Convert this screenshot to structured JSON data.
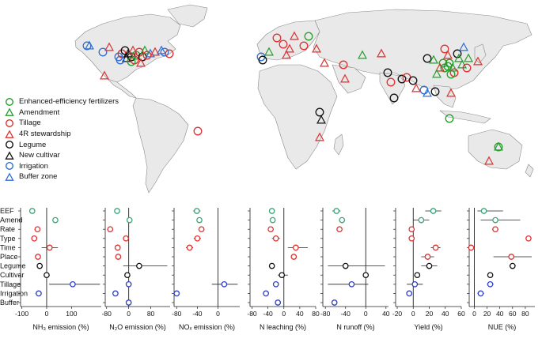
{
  "map": {
    "legend": [
      {
        "label": "Enhanced-efficiency fertilizers",
        "shape": "circle",
        "color": "#22a02a"
      },
      {
        "label": "Amendment",
        "shape": "triangle",
        "color": "#22a02a"
      },
      {
        "label": "Tillage",
        "shape": "circle",
        "color": "#e03030"
      },
      {
        "label": "4R stewardship",
        "shape": "triangle",
        "color": "#e03030"
      },
      {
        "label": "Legume",
        "shape": "circle",
        "color": "#111111"
      },
      {
        "label": "New cultivar",
        "shape": "triangle",
        "color": "#111111"
      },
      {
        "label": "Irrigation",
        "shape": "circle",
        "color": "#2e6fd6"
      },
      {
        "label": "Buffer zone",
        "shape": "triangle",
        "color": "#2e6fd6"
      }
    ]
  },
  "chart_data": {
    "type": "forest-plot",
    "row_labels": [
      "EEF",
      "Amend",
      "Rate",
      "Type",
      "Time",
      "Place",
      "Legume",
      "Cultivar",
      "Tillage",
      "Irrigation",
      "Buffer"
    ],
    "row_colors": [
      "#3aa679",
      "#3aa679",
      "#e03030",
      "#e03030",
      "#e03030",
      "#e03030",
      "#111111",
      "#111111",
      "#2e3fbf",
      "#2e3fbf",
      "#2e3fbf"
    ],
    "panels": [
      {
        "xlabel": "NH₃ emission (%)",
        "ticks": [
          -100,
          0,
          100
        ],
        "xlim": [
          -105,
          220
        ],
        "points": [
          {
            "row": 0,
            "est": -58,
            "lo": -62,
            "hi": -54
          },
          {
            "row": 1,
            "est": 35,
            "lo": 31,
            "hi": 39
          },
          {
            "row": 2,
            "est": -37,
            "lo": -42,
            "hi": -32
          },
          {
            "row": 3,
            "est": -50,
            "lo": -55,
            "hi": -45
          },
          {
            "row": 4,
            "est": 12,
            "lo": -20,
            "hi": 45
          },
          {
            "row": 5,
            "est": -35,
            "lo": -40,
            "hi": -30
          },
          {
            "row": 6,
            "est": -28,
            "lo": -32,
            "hi": -24
          },
          {
            "row": 7,
            "est": 0,
            "lo": -4,
            "hi": 4
          },
          {
            "row": 8,
            "est": 105,
            "lo": 10,
            "hi": 215
          },
          {
            "row": 9,
            "est": -32,
            "lo": -45,
            "hi": -20
          }
        ]
      },
      {
        "xlabel": "N₂O emission (%)",
        "ticks": [
          -80,
          0,
          80
        ],
        "xlim": [
          -85,
          150
        ],
        "points": [
          {
            "row": 0,
            "est": -42,
            "lo": -48,
            "hi": -36
          },
          {
            "row": 1,
            "est": 3,
            "lo": -5,
            "hi": 11
          },
          {
            "row": 2,
            "est": -67,
            "lo": -72,
            "hi": -62
          },
          {
            "row": 3,
            "est": -10,
            "lo": -18,
            "hi": -2
          },
          {
            "row": 4,
            "est": -40,
            "lo": -47,
            "hi": -33
          },
          {
            "row": 5,
            "est": -38,
            "lo": -45,
            "hi": -31
          },
          {
            "row": 6,
            "est": 38,
            "lo": -20,
            "hi": 140
          },
          {
            "row": 7,
            "est": -5,
            "lo": -9,
            "hi": -1
          },
          {
            "row": 8,
            "est": 0,
            "lo": -4,
            "hi": 4
          },
          {
            "row": 9,
            "est": -48,
            "lo": -58,
            "hi": -38
          },
          {
            "row": 10,
            "est": 0,
            "lo": -4,
            "hi": 4
          }
        ]
      },
      {
        "xlabel": "NOₓ emission (%)",
        "ticks": [
          -80,
          -40,
          0
        ],
        "xlim": [
          -85,
          42
        ],
        "points": [
          {
            "row": 0,
            "est": -41,
            "lo": -48,
            "hi": -34
          },
          {
            "row": 1,
            "est": -36,
            "lo": -40,
            "hi": -32
          },
          {
            "row": 2,
            "est": -32,
            "lo": -35,
            "hi": -29
          },
          {
            "row": 3,
            "est": -40,
            "lo": -47,
            "hi": -33
          },
          {
            "row": 4,
            "est": -55,
            "lo": -62,
            "hi": -48
          },
          {
            "row": 8,
            "est": 12,
            "lo": -12,
            "hi": 38
          },
          {
            "row": 9,
            "est": -80,
            "lo": -83,
            "hi": -77
          }
        ]
      },
      {
        "xlabel": "N leaching (%)",
        "ticks": [
          -80,
          -40,
          0,
          40,
          80
        ],
        "xlim": [
          -85,
          80
        ],
        "points": [
          {
            "row": 0,
            "est": -30,
            "lo": -36,
            "hi": -24
          },
          {
            "row": 1,
            "est": -28,
            "lo": -34,
            "hi": -22
          },
          {
            "row": 2,
            "est": -33,
            "lo": -36,
            "hi": -30
          },
          {
            "row": 3,
            "est": -20,
            "lo": -30,
            "hi": -10
          },
          {
            "row": 4,
            "est": 30,
            "lo": 10,
            "hi": 60
          },
          {
            "row": 5,
            "est": 25,
            "lo": 20,
            "hi": 30
          },
          {
            "row": 6,
            "est": -30,
            "lo": -34,
            "hi": -26
          },
          {
            "row": 7,
            "est": -5,
            "lo": -15,
            "hi": 10
          },
          {
            "row": 8,
            "est": -20,
            "lo": -25,
            "hi": -15
          },
          {
            "row": 9,
            "est": -45,
            "lo": -50,
            "hi": -40
          },
          {
            "row": 10,
            "est": -15,
            "lo": -18,
            "hi": -12
          }
        ]
      },
      {
        "xlabel": "N runoff (%)",
        "ticks": [
          -80,
          -40,
          0,
          40
        ],
        "xlim": [
          -85,
          45
        ],
        "points": [
          {
            "row": 0,
            "est": -58,
            "lo": -66,
            "hi": -50
          },
          {
            "row": 1,
            "est": -47,
            "lo": -53,
            "hi": -41
          },
          {
            "row": 2,
            "est": -52,
            "lo": -55,
            "hi": -49
          },
          {
            "row": 6,
            "est": -40,
            "lo": -75,
            "hi": 38
          },
          {
            "row": 7,
            "est": 0,
            "lo": -4,
            "hi": 4
          },
          {
            "row": 8,
            "est": -28,
            "lo": -75,
            "hi": 5
          },
          {
            "row": 10,
            "est": -62,
            "lo": -65,
            "hi": -59
          }
        ]
      },
      {
        "xlabel": "Yield (%)",
        "ticks": [
          -20,
          0,
          20,
          40,
          60
        ],
        "xlim": [
          -22,
          60
        ],
        "points": [
          {
            "row": 0,
            "est": 25,
            "lo": 15,
            "hi": 35
          },
          {
            "row": 1,
            "est": 10,
            "lo": 0,
            "hi": 20
          },
          {
            "row": 2,
            "est": -2,
            "lo": -5,
            "hi": 1
          },
          {
            "row": 3,
            "est": -2,
            "lo": -4,
            "hi": 0
          },
          {
            "row": 4,
            "est": 28,
            "lo": 22,
            "hi": 34
          },
          {
            "row": 5,
            "est": 18,
            "lo": 10,
            "hi": 26
          },
          {
            "row": 6,
            "est": 20,
            "lo": 10,
            "hi": 30
          },
          {
            "row": 7,
            "est": 5,
            "lo": 2,
            "hi": 8
          },
          {
            "row": 8,
            "est": 2,
            "lo": -8,
            "hi": 12
          },
          {
            "row": 9,
            "est": -5,
            "lo": -8,
            "hi": -2
          }
        ]
      },
      {
        "xlabel": "NUE (%)",
        "ticks": [
          0,
          20,
          40,
          60,
          80
        ],
        "xlim": [
          -8,
          95
        ],
        "points": [
          {
            "row": 0,
            "est": 15,
            "lo": 5,
            "hi": 45
          },
          {
            "row": 1,
            "est": 33,
            "lo": 10,
            "hi": 72
          },
          {
            "row": 2,
            "est": 33,
            "lo": 28,
            "hi": 38
          },
          {
            "row": 3,
            "est": 85,
            "lo": 85,
            "hi": 85
          },
          {
            "row": 4,
            "est": -5,
            "lo": -7,
            "hi": -3
          },
          {
            "row": 5,
            "est": 58,
            "lo": 30,
            "hi": 90
          },
          {
            "row": 6,
            "est": 60,
            "lo": 55,
            "hi": 65
          },
          {
            "row": 7,
            "est": 25,
            "lo": 22,
            "hi": 28
          },
          {
            "row": 8,
            "est": 25,
            "lo": 20,
            "hi": 30
          },
          {
            "row": 9,
            "est": 10,
            "lo": 5,
            "hi": 15
          }
        ]
      }
    ]
  }
}
